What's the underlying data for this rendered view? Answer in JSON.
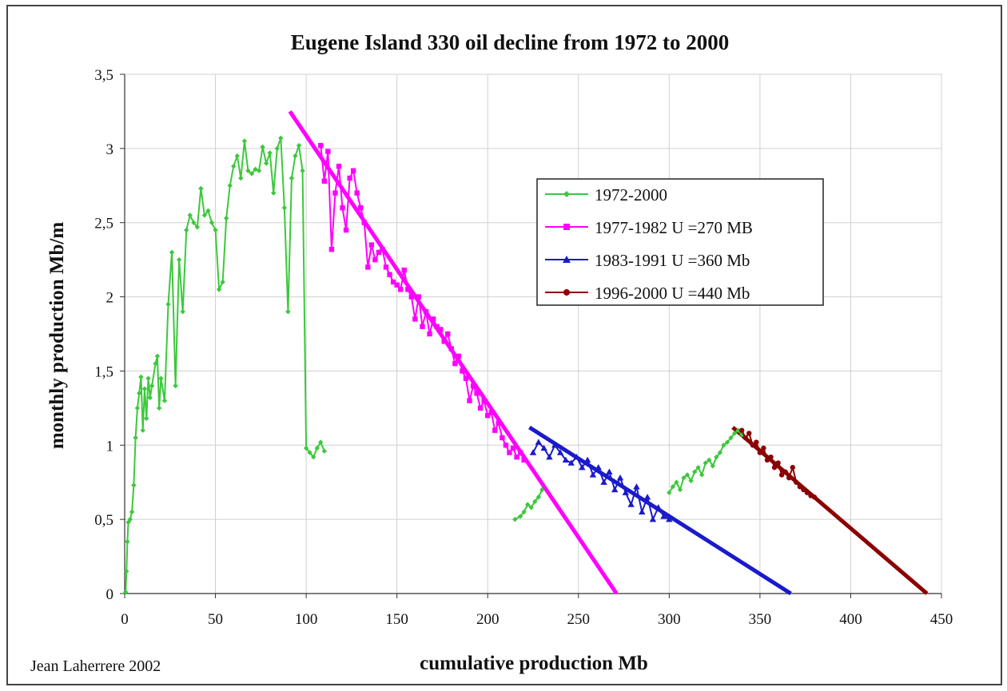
{
  "chart_data": {
    "type": "line",
    "title": "Eugene Island 330 oil decline from 1972 to 2000",
    "xlabel": "cumulative production Mb",
    "ylabel": "monthly production Mb/m",
    "credit": "Jean Laherrere 2002",
    "xlim": [
      0,
      450
    ],
    "ylim": [
      0,
      3.5
    ],
    "x_ticks": [
      "0",
      "50",
      "100",
      "150",
      "200",
      "250",
      "300",
      "350",
      "400",
      "450"
    ],
    "y_ticks": [
      "0",
      "0,5",
      "1",
      "1,5",
      "2",
      "2,5",
      "3",
      "3,5"
    ],
    "grid": true,
    "legend_position": "right",
    "legend": [
      {
        "label": "1972-2000",
        "color": "#3cc83c",
        "marker": "diamond"
      },
      {
        "label": "1977-1982 U =270 MB",
        "color": "#ff00ff",
        "marker": "square"
      },
      {
        "label": "1983-1991 U =360 Mb",
        "color": "#1a1acc",
        "marker": "triangle"
      },
      {
        "label": "1996-2000 U =440 Mb",
        "color": "#8b0000",
        "marker": "circle"
      }
    ],
    "series": [
      {
        "name": "1972-2000",
        "color": "#3cc83c",
        "marker": "diamond",
        "x": [
          0.5,
          1,
          1.5,
          2,
          3,
          4,
          5,
          6,
          7,
          8,
          9,
          10,
          11,
          12,
          13,
          14,
          15,
          17,
          18,
          19,
          20,
          22,
          24,
          26,
          28,
          30,
          32,
          34,
          36,
          38,
          40,
          42,
          44,
          46,
          48,
          50,
          52,
          54,
          56,
          58,
          60,
          62,
          64,
          66,
          68,
          70,
          72,
          74,
          76,
          78,
          80,
          82,
          84,
          86,
          88,
          90,
          92,
          94,
          96,
          98,
          100,
          102,
          104,
          106,
          108,
          110,
          215,
          218,
          220,
          222,
          224,
          226,
          228,
          230,
          300,
          302,
          304,
          306,
          308,
          310,
          312,
          314,
          316,
          318,
          320,
          322,
          324,
          326,
          328,
          330,
          332,
          334,
          336,
          338,
          340,
          342
        ],
        "y": [
          0.01,
          0.15,
          0.35,
          0.48,
          0.5,
          0.55,
          0.73,
          1.05,
          1.25,
          1.35,
          1.46,
          1.1,
          1.38,
          1.18,
          1.45,
          1.32,
          1.4,
          1.55,
          1.6,
          1.25,
          1.45,
          1.3,
          1.95,
          2.3,
          1.4,
          2.25,
          1.9,
          2.45,
          2.55,
          2.5,
          2.47,
          2.73,
          2.55,
          2.58,
          2.5,
          2.45,
          2.05,
          2.1,
          2.53,
          2.75,
          2.88,
          2.95,
          2.8,
          3.05,
          2.85,
          2.83,
          2.86,
          2.85,
          3.01,
          2.9,
          2.97,
          2.7,
          3.0,
          3.07,
          2.6,
          1.9,
          2.8,
          2.95,
          3.02,
          2.85,
          0.98,
          0.95,
          0.92,
          0.98,
          1.02,
          0.96,
          0.5,
          0.52,
          0.55,
          0.6,
          0.58,
          0.62,
          0.65,
          0.7,
          0.68,
          0.72,
          0.75,
          0.7,
          0.78,
          0.8,
          0.76,
          0.82,
          0.85,
          0.8,
          0.88,
          0.9,
          0.86,
          0.92,
          0.95,
          1.0,
          1.02,
          1.05,
          1.08,
          1.1,
          1.07,
          1.05
        ]
      },
      {
        "name": "1977-1982 U =270 MB",
        "color": "#ff00ff",
        "marker": "square",
        "x": [
          108,
          110,
          112,
          114,
          116,
          118,
          120,
          122,
          124,
          126,
          128,
          130,
          132,
          134,
          136,
          138,
          140,
          142,
          144,
          146,
          148,
          150,
          152,
          154,
          156,
          158,
          160,
          162,
          164,
          166,
          168,
          170,
          172,
          174,
          176,
          178,
          180,
          182,
          184,
          186,
          188,
          190,
          192,
          194,
          196,
          198,
          200,
          202,
          204,
          206,
          208,
          210,
          212,
          214,
          216,
          218,
          220
        ],
        "y": [
          3.02,
          2.78,
          2.98,
          2.32,
          2.7,
          2.88,
          2.6,
          2.45,
          2.8,
          2.85,
          2.7,
          2.6,
          2.5,
          2.2,
          2.35,
          2.25,
          2.3,
          2.32,
          2.2,
          2.15,
          2.1,
          2.08,
          2.05,
          2.18,
          2.05,
          2.0,
          1.85,
          2.0,
          1.8,
          1.9,
          1.75,
          1.85,
          1.8,
          1.78,
          1.7,
          1.75,
          1.65,
          1.55,
          1.6,
          1.5,
          1.45,
          1.3,
          1.4,
          1.35,
          1.25,
          1.3,
          1.2,
          1.22,
          1.1,
          1.15,
          1.05,
          1.0,
          0.95,
          0.98,
          0.92,
          0.95,
          0.9
        ]
      },
      {
        "name": "1983-1991 U =360 Mb",
        "color": "#1a1acc",
        "marker": "triangle",
        "x": [
          225,
          228,
          231,
          234,
          237,
          240,
          243,
          246,
          249,
          252,
          255,
          258,
          261,
          264,
          267,
          270,
          273,
          276,
          279,
          282,
          285,
          288,
          291,
          294,
          297,
          300
        ],
        "y": [
          0.95,
          1.02,
          0.98,
          0.92,
          1.0,
          0.95,
          0.9,
          0.88,
          0.92,
          0.85,
          0.9,
          0.8,
          0.85,
          0.75,
          0.82,
          0.7,
          0.78,
          0.68,
          0.6,
          0.72,
          0.55,
          0.65,
          0.5,
          0.58,
          0.52,
          0.5
        ]
      },
      {
        "name": "1996-2000 U =440 Mb",
        "color": "#8b0000",
        "marker": "circle",
        "x": [
          340,
          342,
          344,
          346,
          348,
          350,
          352,
          354,
          356,
          358,
          360,
          362,
          364,
          366,
          368,
          370,
          372,
          374,
          376,
          378,
          380
        ],
        "y": [
          1.1,
          1.05,
          1.08,
          1.0,
          1.02,
          0.95,
          0.98,
          0.9,
          0.92,
          0.85,
          0.88,
          0.8,
          0.82,
          0.78,
          0.85,
          0.75,
          0.72,
          0.7,
          0.68,
          0.66,
          0.65
        ]
      }
    ],
    "trend_lines": [
      {
        "series": "1977-1982 U =270 MB",
        "color": "#ff00ff",
        "x": [
          91,
          271
        ],
        "y": [
          3.25,
          0
        ]
      },
      {
        "series": "1983-1991 U =360 Mb",
        "color": "#1a1acc",
        "x": [
          223,
          367
        ],
        "y": [
          1.12,
          0
        ]
      },
      {
        "series": "1996-2000 U =440 Mb",
        "color": "#8b0000",
        "x": [
          335,
          442
        ],
        "y": [
          1.12,
          0
        ]
      }
    ]
  }
}
